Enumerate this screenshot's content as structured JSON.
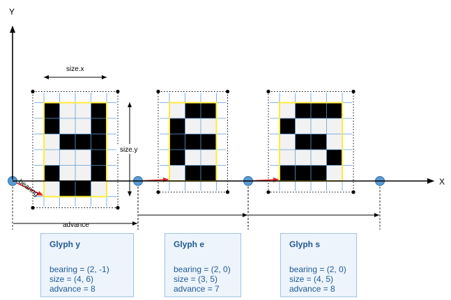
{
  "axes": {
    "x_label": "X",
    "y_label": "Y"
  },
  "dimension_labels": {
    "size_x": "size.x",
    "size_y": "size.y",
    "bearing": "bearing",
    "advance": "advance"
  },
  "colors": {
    "axis": "#000000",
    "grid": "#5b9bd5",
    "outline": "#ffeb3b",
    "pixel_on": "#000000",
    "pixel_off": "#f2f2f2",
    "origin_dot": "#5b9bd5",
    "bearing_arrow": "#e02020"
  },
  "glyphs": [
    {
      "title": "Glyph y",
      "bearing": [
        2,
        -1
      ],
      "size": [
        4,
        6
      ],
      "advance": 8,
      "bitmap": [
        "1001",
        "1001",
        "0111",
        "0001",
        "1001",
        "0110"
      ],
      "bearing_text": "bearing = (2, -1)",
      "size_text": "size = (4, 6)",
      "advance_text": "advance = 8"
    },
    {
      "title": "Glyph e",
      "bearing": [
        2,
        0
      ],
      "size": [
        3,
        5
      ],
      "advance": 7,
      "bitmap": [
        "011",
        "100",
        "111",
        "100",
        "011"
      ],
      "bearing_text": "bearing = (2, 0)",
      "size_text": "size = (3, 5)",
      "advance_text": "advance = 7"
    },
    {
      "title": "Glyph s",
      "bearing": [
        2,
        0
      ],
      "size": [
        4,
        5
      ],
      "advance": 8,
      "bitmap": [
        "0111",
        "1000",
        "0110",
        "0001",
        "1110"
      ],
      "bearing_text": "bearing = (2, 0)",
      "size_text": "size = (4, 5)",
      "advance_text": "advance = 8"
    }
  ]
}
